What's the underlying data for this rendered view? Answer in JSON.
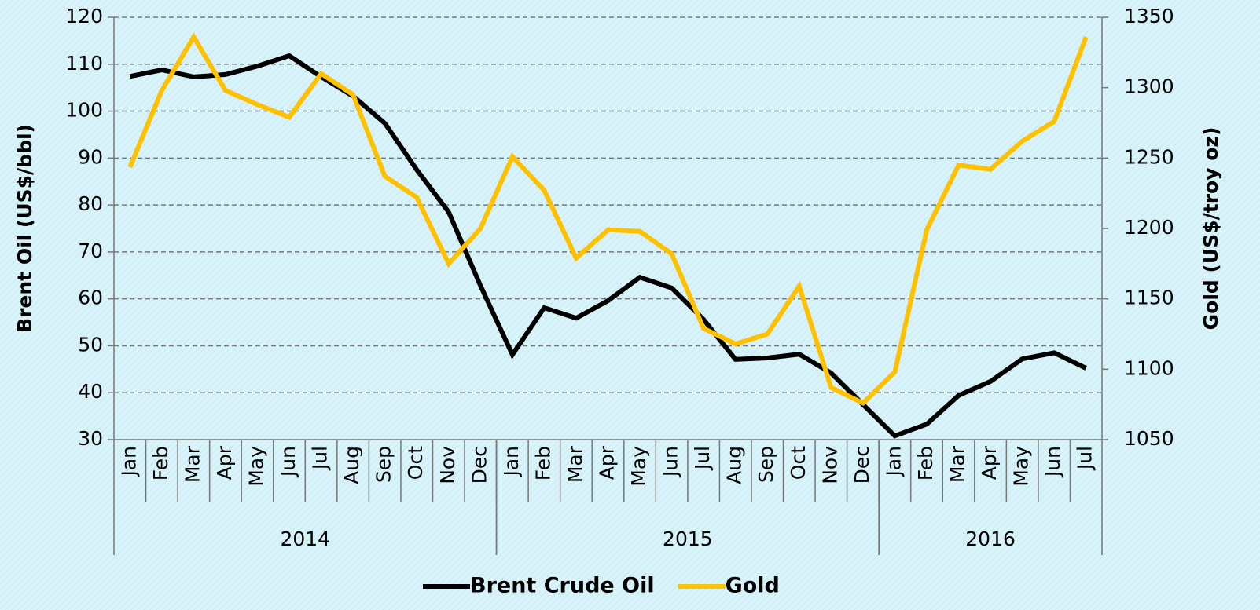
{
  "chart_data": {
    "type": "line",
    "categories": [
      "Jan",
      "Feb",
      "Mar",
      "Apr",
      "May",
      "Jun",
      "Jul",
      "Aug",
      "Sep",
      "Oct",
      "Nov",
      "Dec",
      "Jan",
      "Feb",
      "Mar",
      "Apr",
      "May",
      "Jun",
      "Jul",
      "Aug",
      "Sep",
      "Oct",
      "Nov",
      "Dec",
      "Jan",
      "Feb",
      "Mar",
      "Apr",
      "May",
      "Jun",
      "Jul"
    ],
    "year_groups": [
      {
        "label": "2014",
        "count": 12
      },
      {
        "label": "2015",
        "count": 12
      },
      {
        "label": "2016",
        "count": 7
      }
    ],
    "y_label": "Brent Oil (US$/bbl)",
    "y2_label": "Gold (US$/troy oz)",
    "ylim": [
      30,
      120
    ],
    "yticks": [
      30,
      40,
      50,
      60,
      70,
      80,
      90,
      100,
      110,
      120
    ],
    "y2lim": [
      1050,
      1350
    ],
    "y2ticks": [
      1050,
      1100,
      1150,
      1200,
      1250,
      1300,
      1350
    ],
    "grid": true,
    "legend": "bottom",
    "series": [
      {
        "name": "Brent Crude Oil",
        "color": "#000000",
        "axis": "y",
        "values": [
          107.4,
          108.8,
          107.3,
          107.8,
          109.6,
          111.8,
          107.3,
          103.2,
          97.4,
          87.5,
          78.5,
          62.8,
          48.1,
          58.1,
          55.9,
          59.6,
          64.6,
          62.3,
          55.6,
          47.1,
          47.4,
          48.2,
          44.2,
          37.5,
          30.8,
          33.3,
          39.4,
          42.4,
          47.2,
          48.5,
          45.2
        ]
      },
      {
        "name": "Gold",
        "color": "#ffc000",
        "axis": "y2",
        "values": [
          1243.5,
          1298,
          1336,
          1298,
          1288,
          1279,
          1310,
          1295,
          1237,
          1222,
          1175,
          1200,
          1251,
          1227,
          1179,
          1199,
          1198,
          1182,
          1129,
          1118,
          1125,
          1159,
          1087,
          1076,
          1098,
          1199,
          1245,
          1242,
          1262,
          1276,
          1336
        ]
      }
    ]
  }
}
